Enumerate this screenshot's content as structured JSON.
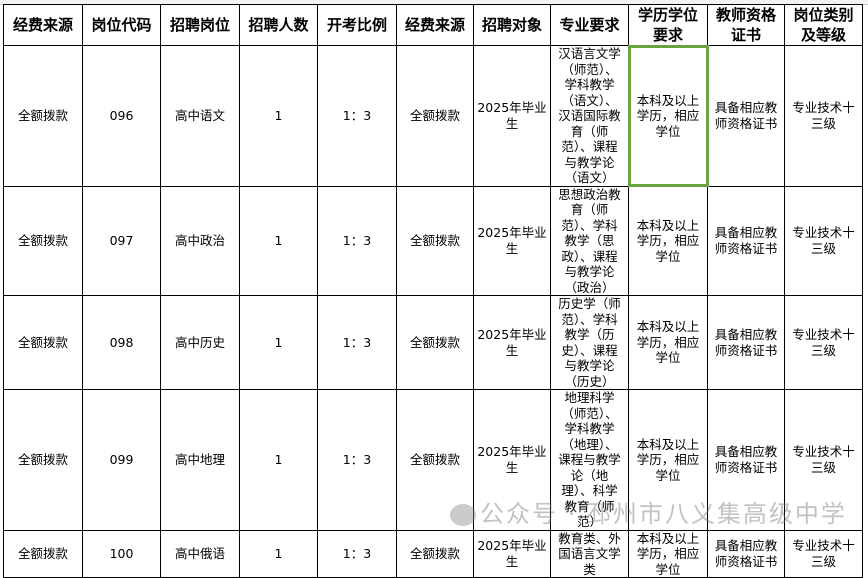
{
  "headers": [
    "经费来源",
    "岗位代码",
    "招聘岗位",
    "招聘人数",
    "开考比例",
    "经费来源",
    "招聘对象",
    "专业要求",
    "学历学位要求",
    "教师资格证书",
    "岗位类别及等级"
  ],
  "rows": [
    [
      "全额拨款",
      "096",
      "高中语文",
      "1",
      "1：3",
      "全额拨款",
      "2025年毕业生",
      "汉语言文学（师范）、学科教学（语文）、汉语国际教育（师范）、课程与教学论（语文）",
      "本科及以上学历，相应学位",
      "具备相应教师资格证书",
      "专业技术十三级"
    ],
    [
      "全额拨款",
      "097",
      "高中政治",
      "1",
      "1：3",
      "全额拨款",
      "2025年毕业生",
      "思想政治教育（师范）、学科教学（思政）、课程与教学论（政治）",
      "本科及以上学历，相应学位",
      "具备相应教师资格证书",
      "专业技术十三级"
    ],
    [
      "全额拨款",
      "098",
      "高中历史",
      "1",
      "1：3",
      "全额拨款",
      "2025年毕业生",
      "历史学（师范）、学科教学（历史）、课程与教学论（历史）",
      "本科及以上学历，相应学位",
      "具备相应教师资格证书",
      "专业技术十三级"
    ],
    [
      "全额拨款",
      "099",
      "高中地理",
      "1",
      "1：3",
      "全额拨款",
      "2025年毕业生",
      "地理科学（师范）、学科教学（地理）、课程与教学论（地理）、科学教育（师范）",
      "本科及以上学历，相应学位",
      "具备相应教师资格证书",
      "专业技术十三级"
    ],
    [
      "全额拨款",
      "100",
      "高中俄语",
      "1",
      "1：3",
      "全额拨款",
      "2025年毕业生",
      "教育类、外国语言文学类",
      "本科及以上学历，相应学位",
      "具备相应教师资格证书",
      "专业技术十三级"
    ]
  ],
  "selected_cell": {
    "row": 0,
    "column": 8
  },
  "selection_color": "#6aa341",
  "watermark": "公众号 · 邳州市八义集高级中学"
}
